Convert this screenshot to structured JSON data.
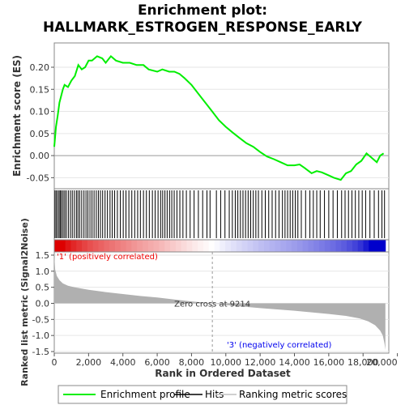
{
  "chart_data": {
    "type": "line",
    "title_line1": "Enrichment plot:",
    "title_line2": "HALLMARK_ESTROGEN_RESPONSE_EARLY",
    "xlabel": "Rank in Ordered Dataset",
    "xlim": [
      0,
      19500
    ],
    "x_ticks": [
      0,
      2000,
      4000,
      6000,
      8000,
      10000,
      12000,
      14000,
      16000,
      18000,
      20000
    ],
    "x_tick_labels": [
      "0",
      "2,000",
      "4,000",
      "6,000",
      "8,000",
      "10,000",
      "12,000",
      "14,000",
      "16,000",
      "18,000",
      "20,000"
    ],
    "es_panel": {
      "ylabel": "Enrichment score (ES)",
      "ylim": [
        -0.075,
        0.255
      ],
      "y_ticks": [
        -0.05,
        0.0,
        0.05,
        0.1,
        0.15,
        0.2
      ],
      "y_tick_labels": [
        "-0.05",
        "0.00",
        "0.05",
        "0.10",
        "0.15",
        "0.20"
      ],
      "series": {
        "name": "Enrichment profile",
        "color": "#00ee00",
        "x": [
          0,
          100,
          200,
          300,
          400,
          500,
          600,
          800,
          1000,
          1200,
          1400,
          1600,
          1800,
          2000,
          2200,
          2500,
          2800,
          3000,
          3300,
          3600,
          4000,
          4400,
          4800,
          5200,
          5500,
          6000,
          6300,
          6700,
          7000,
          7300,
          7600,
          8000,
          8400,
          8800,
          9200,
          9600,
          10000,
          10400,
          10800,
          11200,
          11600,
          12000,
          12400,
          12800,
          13200,
          13600,
          14000,
          14300,
          14600,
          15000,
          15300,
          15600,
          16000,
          16300,
          16700,
          17000,
          17300,
          17600,
          17900,
          18200,
          18500,
          18800,
          19000,
          19200
        ],
        "y": [
          0.02,
          0.065,
          0.09,
          0.12,
          0.135,
          0.15,
          0.16,
          0.155,
          0.17,
          0.18,
          0.205,
          0.195,
          0.2,
          0.215,
          0.215,
          0.225,
          0.22,
          0.21,
          0.225,
          0.215,
          0.21,
          0.21,
          0.205,
          0.205,
          0.195,
          0.19,
          0.195,
          0.19,
          0.19,
          0.185,
          0.175,
          0.16,
          0.14,
          0.12,
          0.1,
          0.08,
          0.065,
          0.052,
          0.04,
          0.028,
          0.02,
          0.008,
          -0.002,
          -0.008,
          -0.015,
          -0.022,
          -0.022,
          -0.02,
          -0.028,
          -0.04,
          -0.035,
          -0.038,
          -0.045,
          -0.05,
          -0.055,
          -0.04,
          -0.035,
          -0.02,
          -0.012,
          0.005,
          -0.005,
          -0.015,
          0.0,
          0.005
        ]
      }
    },
    "hits_panel": {
      "hit_ranks": [
        45,
        120,
        210,
        290,
        360,
        430,
        520,
        610,
        700,
        820,
        940,
        1050,
        1170,
        1290,
        1380,
        1480,
        1600,
        1730,
        1850,
        1960,
        2080,
        2200,
        2320,
        2450,
        2570,
        2690,
        2820,
        2960,
        3100,
        3250,
        3380,
        3520,
        3680,
        3850,
        4020,
        4180,
        4350,
        4520,
        4690,
        4860,
        5020,
        5200,
        5370,
        5540,
        5720,
        5880,
        6050,
        6200,
        6320,
        6450,
        6580,
        6720,
        6850,
        6990,
        7150,
        7320,
        7500,
        7700,
        7920,
        8150,
        8400,
        8650,
        8900,
        9080,
        9450,
        9700,
        9950,
        10200,
        10380,
        10550,
        10700,
        10850,
        11000,
        11150,
        11300,
        11450,
        11600,
        11750,
        11900,
        12100,
        12300,
        12500,
        12700,
        12900,
        13100,
        13300,
        13450,
        13600,
        13750,
        13900,
        14050,
        14200,
        14400,
        14650,
        14900,
        15100,
        15300,
        15500,
        15750,
        16000,
        16250,
        16500,
        16750,
        16950,
        17150,
        17350,
        17550,
        17750,
        17950,
        18150,
        18400,
        18650,
        18900,
        19100,
        19250
      ]
    },
    "rank_metric_panel": {
      "ylabel": "Ranked list metric (Signal2Noise)",
      "ylim": [
        -1.55,
        1.6
      ],
      "y_ticks": [
        -1.5,
        -1.0,
        -0.5,
        0.0,
        0.5,
        1.0,
        1.5
      ],
      "y_tick_labels": [
        "-1.5",
        "-1.0",
        "-0.5",
        "0.0",
        "0.5",
        "1.0",
        "1.5"
      ],
      "x": [
        0,
        50,
        150,
        300,
        500,
        800,
        1200,
        2000,
        3000,
        4000,
        5000,
        6000,
        7000,
        8000,
        9214,
        10000,
        11000,
        12000,
        13000,
        14000,
        15000,
        16000,
        17000,
        17800,
        18300,
        18700,
        19000,
        19150,
        19250,
        19300
      ],
      "y": [
        1.5,
        1.05,
        0.85,
        0.72,
        0.62,
        0.55,
        0.5,
        0.42,
        0.35,
        0.29,
        0.23,
        0.18,
        0.12,
        0.06,
        0.0,
        -0.05,
        -0.1,
        -0.15,
        -0.19,
        -0.23,
        -0.28,
        -0.33,
        -0.39,
        -0.47,
        -0.56,
        -0.68,
        -0.85,
        -1.0,
        -1.25,
        -1.45
      ],
      "zero_cross_label": "Zero cross at 9214",
      "zero_cross_rank": 9214,
      "pos_label": "'1' (positively correlated)",
      "neg_label": "'3' (negatively correlated)"
    },
    "legend": [
      {
        "label": "Enrichment profile",
        "color": "#00ee00"
      },
      {
        "label": "Hits",
        "color": "#000000"
      },
      {
        "label": "Ranking metric scores",
        "color": "#c0c0c0"
      }
    ],
    "colors": {
      "positive": "#dd0000",
      "negative": "#0000cc",
      "pos_label": "#ee0000",
      "neg_label": "#0000ee",
      "metric_fill": "#b0b0b0"
    }
  }
}
